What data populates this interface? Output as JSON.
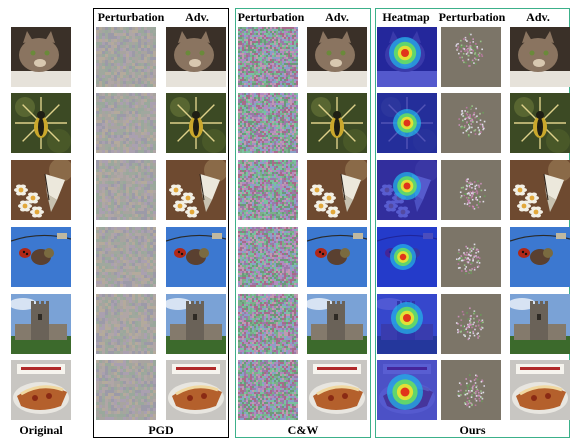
{
  "columns": {
    "original_label": "Original",
    "pgd": {
      "perturbation": "Perturbation",
      "adv": "Adv.",
      "method": "PGD"
    },
    "cw": {
      "perturbation": "Perturbation",
      "adv": "Adv.",
      "method": "C&W"
    },
    "ours": {
      "heatmap": "Heatmap",
      "perturbation": "Perturbation",
      "adv": "Adv.",
      "method": "Ours"
    }
  },
  "rows": [
    {
      "subject": "cat",
      "sky": "#3a3028",
      "main": "#8a7460",
      "accent": "#d8c8b0"
    },
    {
      "subject": "spider",
      "sky": "#3c4a24",
      "main": "#caa82c",
      "accent": "#1e1e14"
    },
    {
      "subject": "butterfly",
      "sky": "#6e4a30",
      "main": "#f2f0e6",
      "accent": "#e2a83a"
    },
    {
      "subject": "ladybug",
      "sky": "#3c78d0",
      "main": "#5a4030",
      "accent": "#b02818"
    },
    {
      "subject": "castle",
      "sky": "#7aa2d6",
      "main": "#6a6258",
      "accent": "#3c6a2c"
    },
    {
      "subject": "pizza",
      "sky": "#c8c6c2",
      "main": "#b4602c",
      "accent": "#f0d8a0"
    }
  ]
}
